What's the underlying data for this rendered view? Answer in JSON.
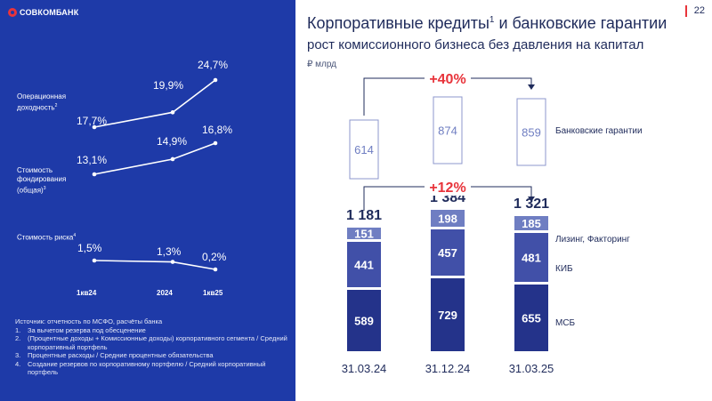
{
  "brand": {
    "name": "СОВКОМБАНК"
  },
  "page_number": "22",
  "colors": {
    "left_bg": "#1e3aa8",
    "accent_red": "#e8343b",
    "msb": "#24338a",
    "kib": "#4150a8",
    "leasing": "#6f7ec2",
    "guarantee_border": "#8c97cc"
  },
  "left_panel": {
    "metrics": [
      {
        "label": "Операционная доходность",
        "superscript": "2",
        "values": [
          "17,7%",
          "19,9%",
          "24,7%"
        ]
      },
      {
        "label": "Стоимость фондирования (общая)",
        "superscript": "3",
        "values": [
          "13,1%",
          "14,9%",
          "16,8%"
        ]
      },
      {
        "label": "Стоимость риска",
        "superscript": "4",
        "values": [
          "1,5%",
          "1,3%",
          "0,2%"
        ]
      }
    ],
    "x_labels": [
      "1кв24",
      "2024",
      "1кв25"
    ],
    "footnotes": {
      "source": "Источник: отчетность по МСФО, расчёты банка",
      "items": [
        {
          "n": "1.",
          "text": "За вычетом резерва под обесценение"
        },
        {
          "n": "2.",
          "text": "(Процентные доходы + Комиссионные доходы) корпоративного сегмента / Средний корпоративный портфель"
        },
        {
          "n": "3.",
          "text": "Процентные расходы / Средние процентные обязательства"
        },
        {
          "n": "4.",
          "text": "Создание резервов по корпоративному портфелю / Средний корпоративный портфель"
        }
      ]
    }
  },
  "right_panel": {
    "title": "Корпоративные кредиты",
    "title_sup": "1",
    "title_rest": " и банковские гарантии",
    "subtitle": "рост комиссионного бизнеса без давления на капитал",
    "unit": "₽ млрд"
  },
  "chart_data": [
    {
      "type": "line",
      "categories": [
        "1кв24",
        "2024",
        "1кв25"
      ],
      "series": [
        {
          "name": "Операционная доходность",
          "values": [
            17.7,
            19.9,
            24.7
          ]
        },
        {
          "name": "Стоимость фондирования (общая)",
          "values": [
            13.1,
            14.9,
            16.8
          ]
        },
        {
          "name": "Стоимость риска",
          "values": [
            1.5,
            1.3,
            0.2
          ]
        }
      ]
    },
    {
      "type": "bar",
      "stacked": true,
      "categories": [
        "31.03.24",
        "31.12.24",
        "31.03.25"
      ],
      "series": [
        {
          "name": "МСБ",
          "values": [
            589,
            729,
            655
          ],
          "labels": [
            "589",
            "729",
            "655"
          ]
        },
        {
          "name": "КИБ",
          "values": [
            441,
            457,
            481
          ],
          "labels": [
            "441",
            "457",
            "481"
          ]
        },
        {
          "name": "Лизинг, Факторинг",
          "values": [
            151,
            198,
            185
          ],
          "labels": [
            "151",
            "198",
            "185"
          ]
        }
      ],
      "totals": [
        "1 181",
        "1 384",
        "1 321"
      ],
      "growth_label": "+12%"
    },
    {
      "type": "bar",
      "categories": [
        "31.03.24",
        "31.12.24",
        "31.03.25"
      ],
      "series": [
        {
          "name": "Банковские гарантии",
          "values": [
            614,
            874,
            859
          ],
          "labels": [
            "614",
            "874",
            "859"
          ]
        }
      ],
      "growth_label": "+40%"
    }
  ]
}
